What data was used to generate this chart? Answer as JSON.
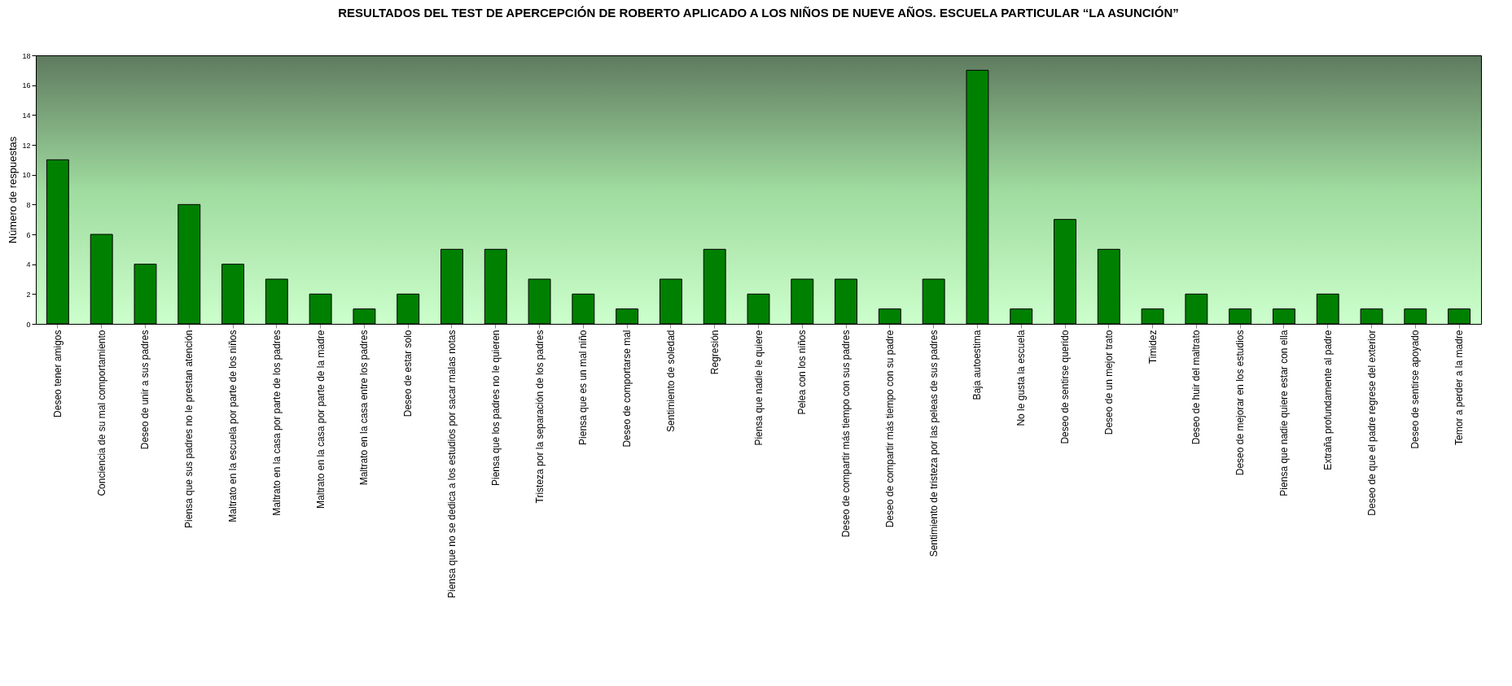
{
  "chart_data": {
    "type": "bar",
    "title": "RESULTADOS DEL TEST DE APERCEPCIÓN DE ROBERTO APLICADO A LOS NIÑOS DE NUEVE AÑOS. ESCUELA PARTICULAR “LA ASUNCIÓN”",
    "ylabel": "Número de respuestas",
    "categories": [
      "Deseo tener amigos",
      "Conciencia de su mal comportamiento",
      "Deseo de unir a sus padres",
      "Piensa que sus padres no le prestan atención",
      "Maltrato en la escuela por parte de los niños",
      "Maltrato en la casa por parte de los padres",
      "Maltrato en la casa por parte de la madre",
      "Maltrato en la casa entre los padres",
      "Deseo de estar solo",
      "Piensa que no se dedica a los estudios por sacar malas notas",
      "Piensa que los padres no le quieren",
      "Tristeza por la separación de los padres",
      "Piensa que es un mal niño",
      "Deseo de comportarse mal",
      "Sentimiento de soledad",
      "Regresión",
      "Piensa que nadie le quiere",
      "Pelea con los niños",
      "Deseo de compartir más tiempo con sus padres",
      "Deseo de compartir más tiempo con su padre",
      "Sentimiento de tristeza por las peleas de sus padres",
      "Baja autoestima",
      "No le gusta la escuela",
      "Deseo de sentirse querido",
      "Deseo de un mejor trato",
      "Timidez",
      "Deseo de huir del maltrato",
      "Deseo de mejorar en los estudios",
      "Piensa que nadie quiere estar con ella",
      "Extraña profundamente al padre",
      "Deseo de que el padre regrese del exterior",
      "Deseo de sentirse apoyado",
      "Temor a perder a la madre"
    ],
    "values": [
      11,
      6,
      4,
      8,
      4,
      3,
      2,
      1,
      2,
      5,
      5,
      3,
      2,
      1,
      3,
      5,
      2,
      3,
      3,
      1,
      3,
      17,
      1,
      7,
      5,
      1,
      2,
      1,
      1,
      2,
      1,
      1,
      1
    ],
    "color": "#008000",
    "ylim": [
      0,
      18
    ],
    "yticks": [
      0,
      2,
      4,
      6,
      8,
      10,
      12,
      14,
      16,
      18
    ],
    "grid": false
  }
}
